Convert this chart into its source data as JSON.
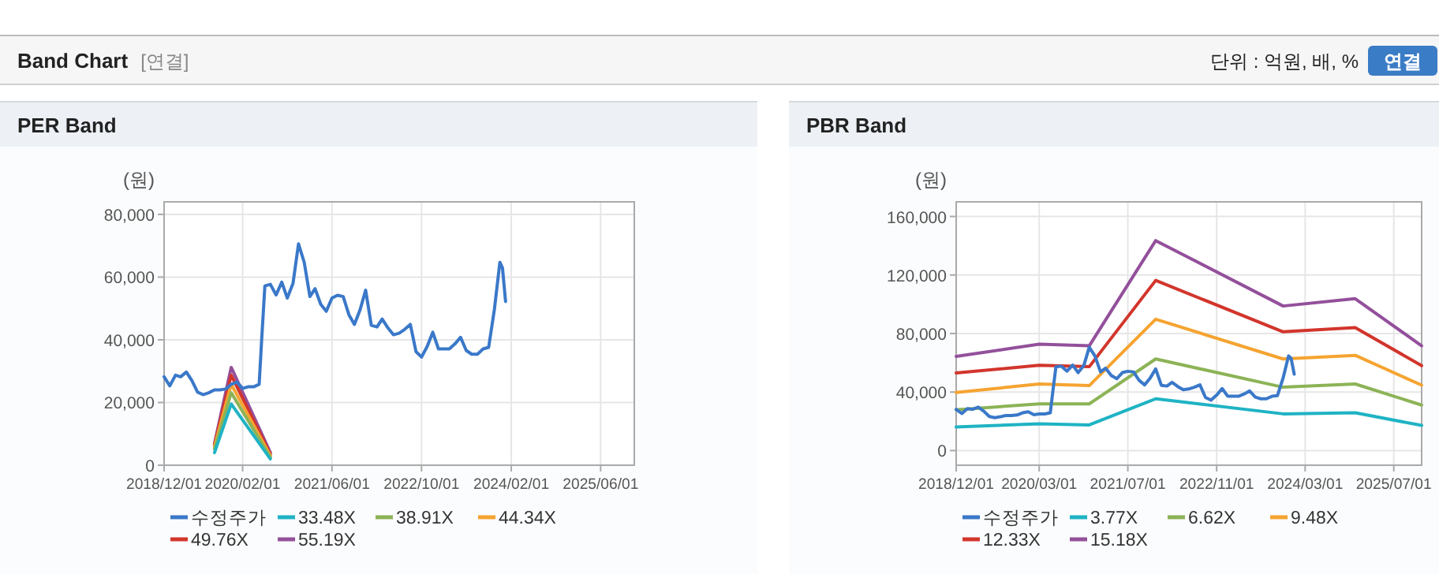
{
  "chart_data": [
    {
      "type": "other",
      "title": "Band Chart",
      "annotations": [
        "[연결]",
        "단위 : 억원, 배, %",
        "연결"
      ]
    },
    {
      "type": "line",
      "title": "PER Band",
      "ylabel": "(원)",
      "xlim": [
        "2018-12-01",
        "2025-12-01"
      ],
      "xticks": [
        {
          "value": "2018-12-01",
          "label": "2018/12/01"
        },
        {
          "value": "2020-02-01",
          "label": "2020/02/01"
        },
        {
          "value": "2021-06-01",
          "label": "2021/06/01"
        },
        {
          "value": "2022-10-01",
          "label": "2022/10/01"
        },
        {
          "value": "2024-02-01",
          "label": "2024/02/01"
        },
        {
          "value": "2025-06-01",
          "label": "2025/06/01"
        }
      ],
      "ylim": [
        0,
        84000
      ],
      "yticks": [
        0,
        {
          "value": 20000,
          "label": "20,000"
        },
        {
          "value": 40000,
          "label": "40,000"
        },
        {
          "value": 60000,
          "label": "60,000"
        },
        {
          "value": 80000,
          "label": "80,000"
        }
      ],
      "grid": true,
      "legend": "bottom",
      "series": [
        {
          "name": "수정주가",
          "color": "#3a78c9",
          "x": [
            "2018-12",
            "2019-01",
            "2019-02",
            "2019-03",
            "2019-04",
            "2019-05",
            "2019-06",
            "2019-07",
            "2019-08",
            "2019-09",
            "2019-10",
            "2019-11",
            "2019-12",
            "2020-01",
            "2020-02",
            "2020-03",
            "2020-04",
            "2020-05",
            "2020-05-15",
            "2020-06",
            "2020-07",
            "2020-08",
            "2020-09",
            "2020-10",
            "2020-11",
            "2020-12",
            "2021-01",
            "2021-02",
            "2021-03",
            "2021-04",
            "2021-05",
            "2021-06",
            "2021-07",
            "2021-08",
            "2021-09",
            "2021-10",
            "2021-11",
            "2021-12",
            "2022-01",
            "2022-02",
            "2022-03",
            "2022-04",
            "2022-05",
            "2022-06",
            "2022-07",
            "2022-08",
            "2022-09",
            "2022-10",
            "2022-11",
            "2022-12",
            "2023-01",
            "2023-02",
            "2023-03",
            "2023-04",
            "2023-05",
            "2023-06",
            "2023-07",
            "2023-08",
            "2023-09",
            "2023-10",
            "2023-11",
            "2023-12",
            "2023-12-15",
            "2024-01"
          ],
          "values": [
            28200,
            25300,
            28700,
            28200,
            29700,
            27000,
            23300,
            22500,
            23100,
            24000,
            24000,
            24300,
            25800,
            26500,
            24500,
            25000,
            25000,
            25800,
            40400,
            57200,
            57700,
            54300,
            58400,
            53300,
            58000,
            70600,
            64700,
            53800,
            56300,
            51300,
            49100,
            53300,
            54200,
            53800,
            48000,
            44900,
            49600,
            55800,
            44600,
            44100,
            46600,
            43800,
            41600,
            42100,
            43300,
            44900,
            36200,
            34500,
            37900,
            42400,
            37100,
            37100,
            37100,
            38700,
            40800,
            36600,
            35400,
            35400,
            37100,
            37600,
            49600,
            64700,
            63000,
            52200
          ]
        },
        {
          "name": "33.48X",
          "color": "#1fb3c4",
          "x": [
            "2019-09",
            "2019-12",
            "2020-07"
          ],
          "values": [
            4000,
            19500,
            2000
          ]
        },
        {
          "name": "38.91X",
          "color": "#8cb356",
          "x": [
            "2019-09",
            "2019-12",
            "2020-07"
          ],
          "values": [
            5200,
            23100,
            2500
          ]
        },
        {
          "name": "44.34X",
          "color": "#f5a431",
          "x": [
            "2019-09",
            "2019-12",
            "2020-07"
          ],
          "values": [
            5900,
            25800,
            3000
          ]
        },
        {
          "name": "49.76X",
          "color": "#d2352c",
          "x": [
            "2019-09",
            "2019-12",
            "2020-07"
          ],
          "values": [
            6400,
            28700,
            3500
          ]
        },
        {
          "name": "55.19X",
          "color": "#93509b",
          "x": [
            "2019-09",
            "2019-12",
            "2020-07"
          ],
          "values": [
            6900,
            31200,
            4000
          ]
        }
      ]
    },
    {
      "type": "line",
      "title": "PBR Band",
      "ylabel": "(원)",
      "xlim": [
        "2018-12-01",
        "2025-12-01"
      ],
      "xticks": [
        {
          "value": "2018-12-01",
          "label": "2018/12/01"
        },
        {
          "value": "2020-03-01",
          "label": "2020/03/01"
        },
        {
          "value": "2021-07-01",
          "label": "2021/07/01"
        },
        {
          "value": "2022-11-01",
          "label": "2022/11/01"
        },
        {
          "value": "2024-03-01",
          "label": "2024/03/01"
        },
        {
          "value": "2025-07-01",
          "label": "2025/07/01"
        }
      ],
      "ylim": [
        -10000,
        170000
      ],
      "yticks": [
        0,
        {
          "value": 40000,
          "label": "40,000"
        },
        {
          "value": 80000,
          "label": "80,000"
        },
        {
          "value": 120000,
          "label": "120,000"
        },
        {
          "value": 160000,
          "label": "160,000"
        }
      ],
      "grid": true,
      "legend": "bottom",
      "series": [
        {
          "name": "수정주가",
          "color": "#3a78c9",
          "x": [
            "2018-12",
            "2019-01",
            "2019-02",
            "2019-03",
            "2019-04",
            "2019-05",
            "2019-06",
            "2019-07",
            "2019-08",
            "2019-09",
            "2019-10",
            "2019-11",
            "2019-12",
            "2020-01",
            "2020-02",
            "2020-03",
            "2020-04",
            "2020-05",
            "2020-05-15",
            "2020-06",
            "2020-07",
            "2020-08",
            "2020-09",
            "2020-10",
            "2020-11",
            "2020-12",
            "2021-01",
            "2021-02",
            "2021-03",
            "2021-04",
            "2021-05",
            "2021-06",
            "2021-07",
            "2021-08",
            "2021-09",
            "2021-10",
            "2021-11",
            "2021-12",
            "2022-01",
            "2022-02",
            "2022-03",
            "2022-04",
            "2022-05",
            "2022-06",
            "2022-07",
            "2022-08",
            "2022-09",
            "2022-10",
            "2022-11",
            "2022-12",
            "2023-01",
            "2023-02",
            "2023-03",
            "2023-04",
            "2023-05",
            "2023-06",
            "2023-07",
            "2023-08",
            "2023-09",
            "2023-10",
            "2023-11",
            "2023-12",
            "2023-12-15",
            "2024-01"
          ],
          "values": [
            28200,
            25300,
            28700,
            28200,
            29700,
            27000,
            23300,
            22500,
            23100,
            24000,
            24000,
            24300,
            25800,
            26500,
            24500,
            25000,
            25000,
            25800,
            40400,
            57200,
            57700,
            54300,
            58400,
            53300,
            58000,
            70600,
            64700,
            53800,
            56300,
            51300,
            49100,
            53300,
            54200,
            53800,
            48000,
            44900,
            49600,
            55800,
            44600,
            44100,
            46600,
            43800,
            41600,
            42100,
            43300,
            44900,
            36200,
            34500,
            37900,
            42400,
            37100,
            37100,
            37100,
            38700,
            40800,
            36600,
            35400,
            35400,
            37100,
            37600,
            49600,
            64700,
            63000,
            52200
          ]
        },
        {
          "name": "3.77X",
          "color": "#1fb3c4",
          "x": [
            "2018-12",
            "2020-03",
            "2020-12",
            "2021-12",
            "2023-11",
            "2024-12",
            "2025-12"
          ],
          "values": [
            16100,
            18300,
            17500,
            35400,
            25100,
            25800,
            17200
          ]
        },
        {
          "name": "6.62X",
          "color": "#8cb356",
          "x": [
            "2018-12",
            "2020-03",
            "2020-12",
            "2021-12",
            "2023-11",
            "2024-12",
            "2025-12"
          ],
          "values": [
            27900,
            31900,
            31900,
            62600,
            43300,
            45500,
            31100
          ]
        },
        {
          "name": "9.48X",
          "color": "#f5a431",
          "x": [
            "2018-12",
            "2020-03",
            "2020-12",
            "2021-12",
            "2023-11",
            "2024-12",
            "2025-12"
          ],
          "values": [
            39700,
            45500,
            44400,
            89800,
            62600,
            65100,
            44700
          ]
        },
        {
          "name": "12.33X",
          "color": "#d2352c",
          "x": [
            "2018-12",
            "2020-03",
            "2020-12",
            "2021-12",
            "2023-11",
            "2024-12",
            "2025-12"
          ],
          "values": [
            53000,
            58300,
            57300,
            116300,
            81200,
            84100,
            58000
          ]
        },
        {
          "name": "15.18X",
          "color": "#93509b",
          "x": [
            "2018-12",
            "2020-03",
            "2020-12",
            "2021-12",
            "2023-11",
            "2024-12",
            "2025-12"
          ],
          "values": [
            64400,
            72700,
            71600,
            143500,
            98800,
            103800,
            71600
          ]
        }
      ]
    }
  ]
}
